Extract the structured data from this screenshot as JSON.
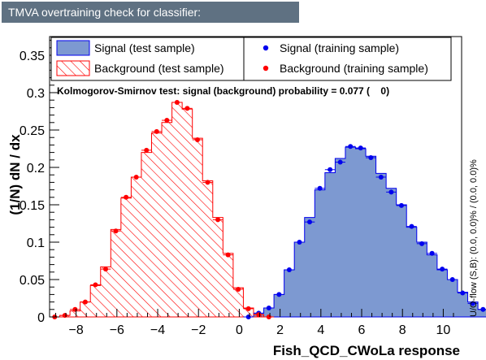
{
  "window": {
    "title": "TMVA overtraining check for classifier: Fish_QCD_CWoLa"
  },
  "legend": {
    "signal_test": "Signal (test sample)",
    "signal_train": "Signal (training sample)",
    "background_test": "Background (test sample)",
    "background_train": "Background (training sample)"
  },
  "ks_text": "Kolmogorov-Smirnov test: signal (background) probability = 0.077 (    0)",
  "side_label": "U/O-flow (S,B): (0.0, 0.0)% / (0.0, 0.0)%",
  "colors": {
    "signal_fill": "#7d99d1",
    "signal_line": "#0000ee",
    "background_line": "#ff0000",
    "title_bg": "#5f7182"
  },
  "chart_data": {
    "type": "histogram",
    "xlabel": "Fish_QCD_CWoLa response",
    "ylabel": "(1/N) dN / dx",
    "xlim": [
      -9.3,
      10.9
    ],
    "ylim": [
      0,
      0.375
    ],
    "bin_width": 0.5,
    "x_ticks": [
      -8,
      -6,
      -4,
      -2,
      0,
      2,
      4,
      6,
      8,
      10
    ],
    "y_ticks": [
      0,
      0.05,
      0.1,
      0.15,
      0.2,
      0.25,
      0.3,
      0.35
    ],
    "series": [
      {
        "name": "Signal (test sample)",
        "style": "filled",
        "x_low": 0.2,
        "values": [
          0.0,
          0.005,
          0.012,
          0.03,
          0.063,
          0.1,
          0.133,
          0.17,
          0.193,
          0.212,
          0.227,
          0.225,
          0.215,
          0.192,
          0.172,
          0.15,
          0.12,
          0.1,
          0.083,
          0.063,
          0.05,
          0.033,
          0.02,
          0.01,
          0.005,
          0.003,
          0.0
        ]
      },
      {
        "name": "Signal (training sample)",
        "style": "points",
        "x_low": 0.2,
        "values": [
          0.0,
          0.005,
          0.012,
          0.03,
          0.063,
          0.1,
          0.127,
          0.172,
          0.197,
          0.207,
          0.228,
          0.226,
          0.213,
          0.187,
          0.167,
          0.149,
          0.121,
          0.098,
          0.085,
          0.064,
          0.05,
          0.032,
          0.018,
          0.01,
          0.006,
          0.003,
          0.002
        ]
      },
      {
        "name": "Background (test sample)",
        "style": "hatched",
        "x_low": -9.3,
        "values": [
          0.0,
          0.002,
          0.008,
          0.02,
          0.042,
          0.067,
          0.117,
          0.159,
          0.187,
          0.22,
          0.246,
          0.26,
          0.287,
          0.278,
          0.239,
          0.182,
          0.133,
          0.085,
          0.039,
          0.012,
          0.003,
          0.0
        ]
      },
      {
        "name": "Background (training sample)",
        "style": "points",
        "x_low": -9.3,
        "values": [
          0.0,
          0.002,
          0.01,
          0.02,
          0.043,
          0.064,
          0.115,
          0.16,
          0.187,
          0.223,
          0.248,
          0.263,
          0.287,
          0.279,
          0.237,
          0.18,
          0.13,
          0.083,
          0.037,
          0.011,
          0.003,
          0.0
        ]
      }
    ]
  }
}
